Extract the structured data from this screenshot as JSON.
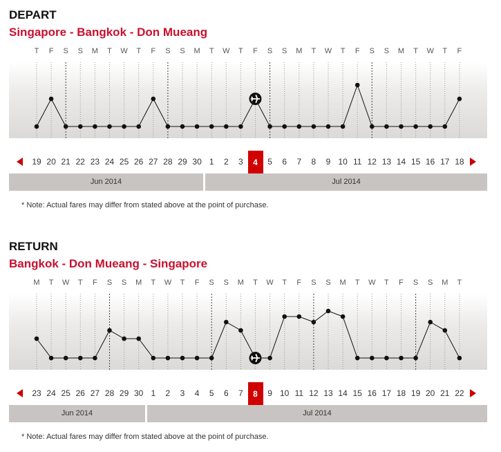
{
  "depart": {
    "title": "DEPART",
    "route": "Singapore - Bangkok - Don Mueang",
    "weekdays": [
      "T",
      "F",
      "S",
      "S",
      "M",
      "T",
      "W",
      "T",
      "F",
      "S",
      "S",
      "M",
      "T",
      "W",
      "T",
      "F",
      "S",
      "S",
      "M",
      "T",
      "W",
      "T",
      "F",
      "S",
      "S",
      "M",
      "T",
      "W",
      "T",
      "F"
    ],
    "dates": [
      "19",
      "20",
      "21",
      "22",
      "23",
      "24",
      "25",
      "26",
      "27",
      "28",
      "29",
      "30",
      "1",
      "2",
      "3",
      "4",
      "5",
      "6",
      "7",
      "8",
      "9",
      "10",
      "11",
      "12",
      "13",
      "14",
      "15",
      "16",
      "17",
      "18"
    ],
    "fare_levels": [
      0,
      1,
      0,
      0,
      0,
      0,
      0,
      0,
      1,
      0,
      0,
      0,
      0,
      0,
      0,
      1,
      0,
      0,
      0,
      0,
      0,
      0,
      1.5,
      0,
      0,
      0,
      0,
      0,
      0,
      1
    ],
    "selected_index": 15,
    "months": [
      "Jun 2014",
      "Jul 2014"
    ],
    "note": "* Note: Actual fares may differ from stated above at the point of purchase."
  },
  "return": {
    "title": "RETURN",
    "route": "Bangkok - Don Mueang - Singapore",
    "weekdays": [
      "M",
      "T",
      "W",
      "T",
      "F",
      "S",
      "S",
      "M",
      "T",
      "W",
      "T",
      "F",
      "S",
      "S",
      "M",
      "T",
      "W",
      "T",
      "F",
      "S",
      "S",
      "M",
      "T",
      "W",
      "T",
      "F",
      "S",
      "S",
      "M",
      "T"
    ],
    "dates": [
      "23",
      "24",
      "25",
      "26",
      "27",
      "28",
      "29",
      "30",
      "1",
      "2",
      "3",
      "4",
      "5",
      "6",
      "7",
      "8",
      "9",
      "10",
      "11",
      "12",
      "13",
      "14",
      "15",
      "16",
      "17",
      "18",
      "19",
      "20",
      "21",
      "22"
    ],
    "fare_levels": [
      0.7,
      0,
      0,
      0,
      0,
      1,
      0.7,
      0.7,
      0,
      0,
      0,
      0,
      0,
      1.3,
      1,
      0,
      0,
      1.5,
      1.5,
      1.3,
      1.7,
      1.5,
      0,
      0,
      0,
      0,
      0,
      1.3,
      1,
      0
    ],
    "selected_index": 15,
    "months": [
      "Jun 2014",
      "Jul 2014"
    ],
    "note": "* Note: Actual fares may differ from stated above at the point of purchase."
  },
  "colors": {
    "accent": "#d10000",
    "route": "#c8102e",
    "month_bar": "#c8c4c2"
  }
}
